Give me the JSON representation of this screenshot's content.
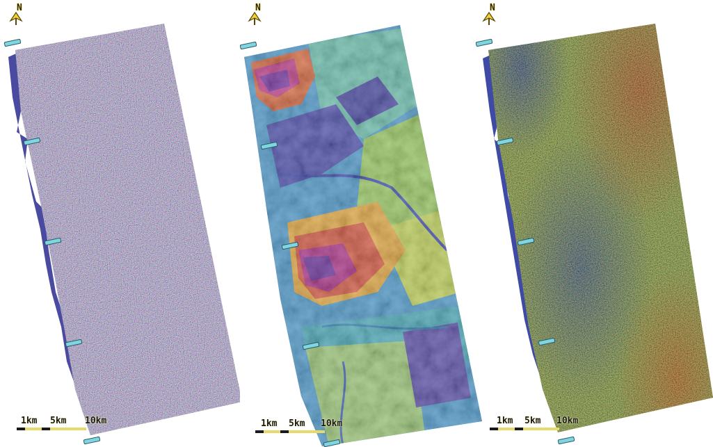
{
  "north_label": "N",
  "scale_labels": [
    "1km",
    "5km",
    "10km"
  ],
  "panels": [
    {
      "id": "wrapped-phase",
      "palette": "cyclic-rainbow",
      "colors": [
        "#9fb49a",
        "#c6a58a",
        "#8c8fbe",
        "#b9c17e",
        "#a88fb2",
        "#9ac4a6"
      ]
    },
    {
      "id": "elevation",
      "palette": "terrain-viridis-magma",
      "colors": [
        "#5a46b4",
        "#3d8ad8",
        "#30c2c6",
        "#8fd46a",
        "#ecd84a",
        "#f08a3c",
        "#d63a8a",
        "#7a2fb0"
      ]
    },
    {
      "id": "displacement",
      "palette": "blue-green-red",
      "colors": [
        "#3d6fb5",
        "#48a6a0",
        "#83c36c",
        "#b7c45a",
        "#d4983a",
        "#c8583a"
      ]
    }
  ]
}
